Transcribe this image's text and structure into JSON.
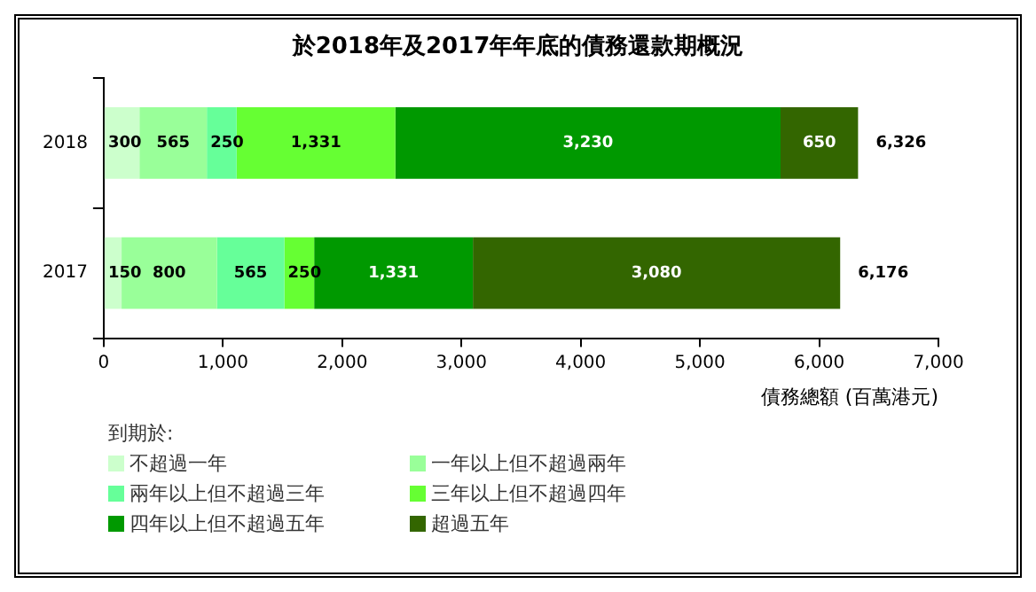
{
  "chart_data": {
    "type": "bar",
    "title": "於2018年及2017年年底的債務還款期概況",
    "orientation": "horizontal",
    "stacked": true,
    "categories": [
      "2018",
      "2017"
    ],
    "series": [
      {
        "name": "不超過一年",
        "color": "#ccffcc",
        "values": [
          300,
          150
        ],
        "value_labels": [
          "300",
          "150"
        ]
      },
      {
        "name": "一年以上但不超過兩年",
        "color": "#99ff99",
        "values": [
          565,
          800
        ],
        "value_labels": [
          "565",
          "800"
        ]
      },
      {
        "name": "兩年以上但不超過三年",
        "color": "#66ff99",
        "values": [
          250,
          565
        ],
        "value_labels": [
          "250",
          "565"
        ]
      },
      {
        "name": "三年以上但不超過四年",
        "color": "#66ff33",
        "values": [
          1331,
          250
        ],
        "value_labels": [
          "1,331",
          "250"
        ]
      },
      {
        "name": "四年以上但不超過五年",
        "color": "#009900",
        "values": [
          3230,
          1331
        ],
        "value_labels": [
          "3,230",
          "1,331"
        ]
      },
      {
        "name": "超過五年",
        "color": "#336600",
        "values": [
          650,
          3080
        ],
        "value_labels": [
          "650",
          "3,080"
        ]
      }
    ],
    "xlim": [
      0,
      7000
    ],
    "xticks": [
      {
        "value": 0,
        "label": "0"
      },
      {
        "value": 1000,
        "label": "1,000"
      },
      {
        "value": 2000,
        "label": "2,000"
      },
      {
        "value": 3000,
        "label": "3,000"
      },
      {
        "value": 4000,
        "label": "4,000"
      },
      {
        "value": 5000,
        "label": "5,000"
      },
      {
        "value": 6000,
        "label": "6,000"
      },
      {
        "value": 7000,
        "label": "7,000"
      }
    ],
    "xlabel": "債務總額 (百萬港元)",
    "totals": [
      "6,326",
      "6,176"
    ],
    "grid": false,
    "legend": "bottom left",
    "legend_title": "到期於:"
  }
}
